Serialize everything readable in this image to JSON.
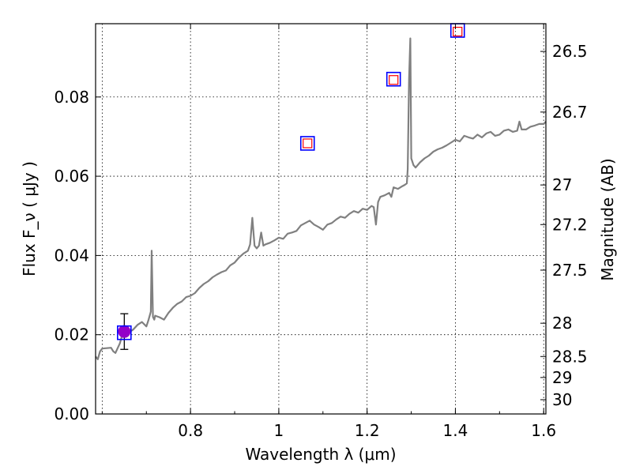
{
  "chart_data": {
    "type": "line",
    "xlabel": "Wavelength  λ (μm)",
    "ylabel": "Flux  F_ν  ( μJy )",
    "ylabel_right": "Magnitude (AB)",
    "xlim": [
      0.585,
      1.605
    ],
    "ylim": [
      0.0,
      0.0985
    ],
    "grid": true,
    "x_ticks": [
      0.8,
      1.0,
      1.2,
      1.4,
      1.6
    ],
    "x_tick_labels": [
      "0.8",
      "1",
      "1.2",
      "1.4",
      "1.6"
    ],
    "y_ticks": [
      0.0,
      0.02,
      0.04,
      0.06,
      0.08
    ],
    "y_tick_labels": [
      "0.00",
      "0.02",
      "0.04",
      "0.06",
      "0.08"
    ],
    "right_ticks": [
      {
        "label": "26.5",
        "flux": 0.0915
      },
      {
        "label": "26.7",
        "flux": 0.0762
      },
      {
        "label": "27",
        "flux": 0.0578
      },
      {
        "label": "27.2",
        "flux": 0.0478
      },
      {
        "label": "27.5",
        "flux": 0.0363
      },
      {
        "label": "28",
        "flux": 0.0229
      },
      {
        "label": "28.5",
        "flux": 0.0145
      },
      {
        "label": "29",
        "flux": 0.0092
      },
      {
        "label": "30",
        "flux": 0.0036
      }
    ],
    "spectrum": {
      "color": "#808080",
      "x": [
        0.585,
        0.59,
        0.595,
        0.6,
        0.62,
        0.625,
        0.63,
        0.64,
        0.645,
        0.65,
        0.66,
        0.67,
        0.68,
        0.69,
        0.7,
        0.705,
        0.71,
        0.712,
        0.715,
        0.718,
        0.72,
        0.73,
        0.74,
        0.75,
        0.76,
        0.77,
        0.78,
        0.79,
        0.8,
        0.81,
        0.82,
        0.83,
        0.84,
        0.85,
        0.86,
        0.87,
        0.88,
        0.89,
        0.9,
        0.91,
        0.92,
        0.93,
        0.935,
        0.94,
        0.945,
        0.95,
        0.955,
        0.96,
        0.965,
        0.97,
        0.98,
        0.99,
        1.0,
        1.01,
        1.02,
        1.03,
        1.04,
        1.05,
        1.06,
        1.07,
        1.08,
        1.09,
        1.1,
        1.11,
        1.12,
        1.13,
        1.14,
        1.15,
        1.16,
        1.17,
        1.18,
        1.19,
        1.2,
        1.21,
        1.215,
        1.22,
        1.225,
        1.23,
        1.24,
        1.25,
        1.255,
        1.26,
        1.27,
        1.28,
        1.285,
        1.29,
        1.292,
        1.295,
        1.298,
        1.3,
        1.305,
        1.31,
        1.32,
        1.33,
        1.34,
        1.35,
        1.36,
        1.37,
        1.38,
        1.39,
        1.4,
        1.41,
        1.42,
        1.43,
        1.44,
        1.45,
        1.46,
        1.47,
        1.48,
        1.49,
        1.5,
        1.51,
        1.52,
        1.53,
        1.54,
        1.545,
        1.55,
        1.56,
        1.57,
        1.58,
        1.59,
        1.6,
        1.605
      ],
      "y": [
        0.0145,
        0.0138,
        0.0158,
        0.0165,
        0.0167,
        0.0158,
        0.0154,
        0.0178,
        0.0198,
        0.0195,
        0.0205,
        0.0213,
        0.0225,
        0.0232,
        0.0221,
        0.0238,
        0.0258,
        0.0412,
        0.0245,
        0.0238,
        0.0248,
        0.0244,
        0.0238,
        0.0255,
        0.0268,
        0.0278,
        0.0284,
        0.0295,
        0.0298,
        0.0305,
        0.0318,
        0.0328,
        0.0335,
        0.0345,
        0.0352,
        0.0358,
        0.0362,
        0.0375,
        0.0382,
        0.0395,
        0.0405,
        0.0412,
        0.0428,
        0.0495,
        0.0425,
        0.0418,
        0.0425,
        0.0458,
        0.0425,
        0.0428,
        0.0432,
        0.0438,
        0.0445,
        0.0442,
        0.0455,
        0.0458,
        0.0462,
        0.0476,
        0.0482,
        0.0488,
        0.0478,
        0.0472,
        0.0465,
        0.0478,
        0.0482,
        0.0491,
        0.0498,
        0.0495,
        0.0505,
        0.0512,
        0.0508,
        0.0518,
        0.0515,
        0.0525,
        0.0522,
        0.0478,
        0.0535,
        0.0548,
        0.0552,
        0.0558,
        0.0548,
        0.0572,
        0.0568,
        0.0575,
        0.0578,
        0.0582,
        0.0618,
        0.0845,
        0.0948,
        0.0645,
        0.0628,
        0.0622,
        0.0635,
        0.0645,
        0.0652,
        0.0662,
        0.0668,
        0.0672,
        0.0678,
        0.0685,
        0.0692,
        0.0688,
        0.0702,
        0.0698,
        0.0695,
        0.0705,
        0.0698,
        0.0708,
        0.0712,
        0.0702,
        0.0705,
        0.0715,
        0.0718,
        0.0712,
        0.0715,
        0.0738,
        0.0718,
        0.0718,
        0.0725,
        0.0728,
        0.0732,
        0.0732,
        0.0738
      ]
    },
    "photometry_model": {
      "marker": "square",
      "color": "#ff0000",
      "x": [
        1.065,
        1.26,
        1.405
      ],
      "y": [
        0.0683,
        0.0843,
        0.0965
      ]
    },
    "photometry_observed": {
      "marker": "square",
      "color": "#0000ff",
      "x": [
        0.65,
        1.065,
        1.26,
        1.405
      ],
      "y": [
        0.0205,
        0.0683,
        0.0845,
        0.0968
      ]
    },
    "detection": {
      "marker": "circle",
      "color": "#9400c8",
      "x": 0.65,
      "y": 0.0208,
      "yerr": 0.0045
    }
  }
}
